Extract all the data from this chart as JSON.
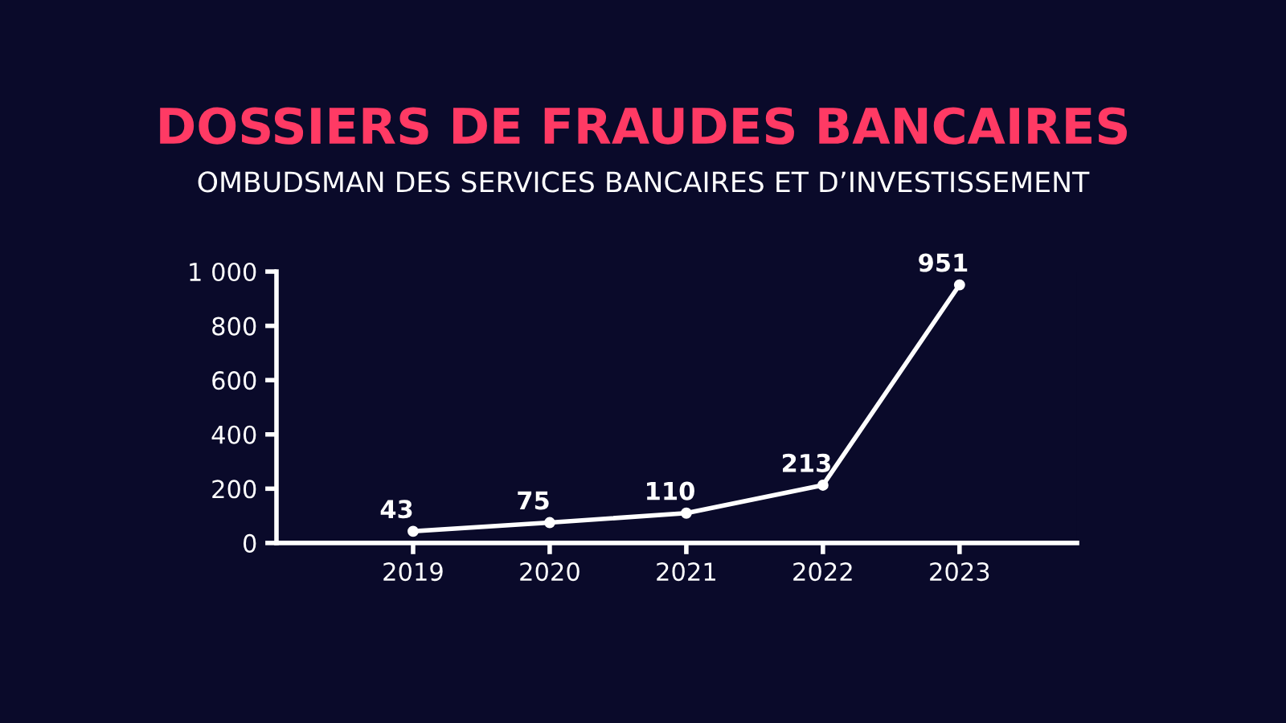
{
  "chart_data": {
    "type": "line",
    "title": "DOSSIERS DE FRAUDES BANCAIRES",
    "subtitle": "OMBUDSMAN DES SERVICES BANCAIRES ET D’INVESTISSEMENT",
    "categories": [
      "2019",
      "2020",
      "2021",
      "2022",
      "2023"
    ],
    "series": [
      {
        "color": "#ffffff",
        "values": [
          43,
          75,
          110,
          213,
          951
        ]
      }
    ],
    "ylim": [
      0,
      1000
    ],
    "yticks": [
      0,
      200,
      400,
      600,
      800,
      {
        "value": 1000,
        "label": "1 000"
      }
    ],
    "data_labels": true,
    "marker": "circle",
    "line_style": "solid"
  }
}
